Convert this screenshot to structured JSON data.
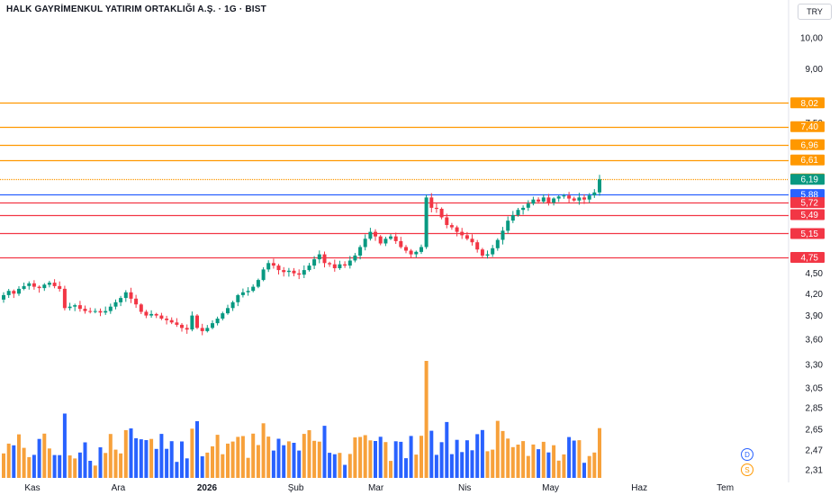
{
  "header": {
    "title": "HALK GAYRİMENKUL YATIRIM ORTAKLIĞI A.Ş. · 1G · BIST",
    "currency": "TRY"
  },
  "badges": {
    "d_label": "D",
    "s_label": "S"
  },
  "colors": {
    "up": "#089981",
    "down": "#f23645",
    "vol_blue": "#2962ff",
    "vol_orange": "#f7a13b",
    "level_orange": "#ff9800",
    "level_blue": "#2962ff",
    "level_red": "#f23645",
    "last_price": "#089981"
  },
  "chart_data": {
    "type": "candlestick",
    "y_scale": "log",
    "ylim": [
      2.2,
      11.0
    ],
    "y_ticks": [
      "10,00",
      "9,00",
      "7,50",
      "4,50",
      "4,20",
      "3,90",
      "3,60",
      "3,30",
      "3,05",
      "2,85",
      "2,65",
      "2,47",
      "2,31"
    ],
    "x_labels": [
      {
        "label": "Kas",
        "date": "2025-11-01",
        "bold": false
      },
      {
        "label": "Ara",
        "date": "2025-12-01",
        "bold": false
      },
      {
        "label": "2026",
        "date": "2026-01-01",
        "bold": true
      },
      {
        "label": "Şub",
        "date": "2026-02-01",
        "bold": false
      },
      {
        "label": "Mar",
        "date": "2026-03-01",
        "bold": false
      },
      {
        "label": "Nis",
        "date": "2026-04-01",
        "bold": false
      },
      {
        "label": "May",
        "date": "2026-05-01",
        "bold": false
      },
      {
        "label": "Haz",
        "date": "2026-06-01",
        "bold": false
      },
      {
        "label": "Tem",
        "date": "2026-07-01",
        "bold": false
      }
    ],
    "levels": [
      {
        "value": 8.02,
        "label": "8,02",
        "color": "orange",
        "style": "solid"
      },
      {
        "value": 7.4,
        "label": "7,40",
        "color": "orange",
        "style": "solid"
      },
      {
        "value": 6.96,
        "label": "6,96",
        "color": "orange",
        "style": "solid"
      },
      {
        "value": 6.61,
        "label": "6,61",
        "color": "orange",
        "style": "solid"
      },
      {
        "value": 6.2,
        "label": "6,20",
        "color": "orange",
        "style": "dotted"
      },
      {
        "value": 5.88,
        "label": "5,88",
        "color": "blue",
        "style": "solid"
      },
      {
        "value": 5.72,
        "label": "5,72",
        "color": "red",
        "style": "solid"
      },
      {
        "value": 5.49,
        "label": "5,49",
        "color": "red",
        "style": "solid"
      },
      {
        "value": 5.15,
        "label": "5,15",
        "color": "red",
        "style": "solid"
      },
      {
        "value": 4.75,
        "label": "4,75",
        "color": "red",
        "style": "solid"
      }
    ],
    "last_price": {
      "value": 6.19,
      "label": "6,19"
    },
    "series_close": [
      4.18,
      4.24,
      4.2,
      4.27,
      4.31,
      4.35,
      4.3,
      4.28,
      4.33,
      4.36,
      4.31,
      4.27,
      4.0,
      4.02,
      4.04,
      3.99,
      3.96,
      3.95,
      3.96,
      3.94,
      3.96,
      4.02,
      4.08,
      4.14,
      4.22,
      4.13,
      4.05,
      3.95,
      3.9,
      3.92,
      3.9,
      3.86,
      3.84,
      3.81,
      3.78,
      3.74,
      3.72,
      3.9,
      3.74,
      3.7,
      3.74,
      3.8,
      3.86,
      3.93,
      4.0,
      4.08,
      4.18,
      4.22,
      4.24,
      4.3,
      4.4,
      4.56,
      4.66,
      4.62,
      4.55,
      4.52,
      4.54,
      4.5,
      4.48,
      4.55,
      4.62,
      4.72,
      4.8,
      4.66,
      4.64,
      4.58,
      4.64,
      4.62,
      4.7,
      4.78,
      4.92,
      5.06,
      5.18,
      5.1,
      4.98,
      5.06,
      5.1,
      5.02,
      4.92,
      4.86,
      4.8,
      4.84,
      4.92,
      5.82,
      5.62,
      5.6,
      5.44,
      5.3,
      5.26,
      5.18,
      5.12,
      5.06,
      5.0,
      4.88,
      4.78,
      4.8,
      4.9,
      5.04,
      5.2,
      5.38,
      5.48,
      5.58,
      5.62,
      5.7,
      5.78,
      5.74,
      5.82,
      5.72,
      5.8,
      5.84,
      5.86,
      5.8,
      5.76,
      5.82,
      5.78,
      5.86,
      5.92,
      6.19
    ],
    "volume_color": "blue on down days, orange on up days"
  }
}
